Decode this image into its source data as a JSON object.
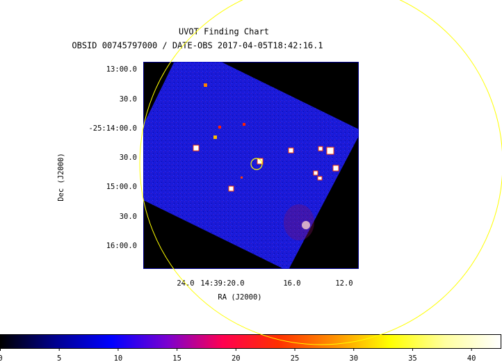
{
  "chart_data": {
    "type": "image",
    "title": "UVOT Finding Chart",
    "subtitle": "OBSID 00745797000 / DATE-OBS 2017-04-05T18:42:16.1",
    "xlabel": "RA (J2000)",
    "ylabel": "Dec (J2000)",
    "xticks": [
      "24.0",
      "14:39:20.0",
      "16.0",
      "12.0"
    ],
    "yticks": [
      "13:00.0",
      "30.0",
      "-25:14:00.0",
      "30.0",
      "15:00.0",
      "30.0",
      "16:00.0"
    ],
    "marker_color": "#ffff00",
    "colorbar": {
      "lim": [
        0,
        42.5
      ],
      "ticks": [
        0,
        5,
        10,
        15,
        20,
        25,
        30,
        35,
        40
      ],
      "colors": [
        "#000000",
        "#000090",
        "#0000ff",
        "#7a00d0",
        "#ff0050",
        "#ff3000",
        "#ff9000",
        "#ffff00",
        "#ffffa0",
        "#ffffff"
      ]
    }
  }
}
